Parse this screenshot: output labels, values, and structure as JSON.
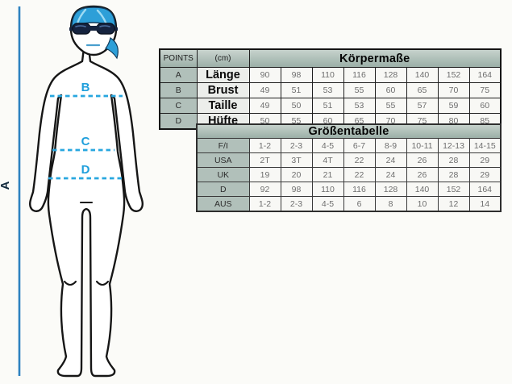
{
  "figure": {
    "height_label": "A",
    "measure_labels": {
      "chest": "B",
      "waist": "C",
      "hip": "D"
    },
    "colors": {
      "measure_line_blue": "#2e82c0",
      "dash_cyan": "#29a7df",
      "cap_blue": "#2d9fd8",
      "outline_black": "#161616",
      "goggles_navy": "#15233f"
    }
  },
  "body_table": {
    "header": {
      "points": "POINTS",
      "unit": "(cm)",
      "title": "Körpermaße"
    },
    "rows": [
      {
        "point": "A",
        "name": "Länge",
        "values": [
          "90",
          "98",
          "110",
          "116",
          "128",
          "140",
          "152",
          "164"
        ]
      },
      {
        "point": "B",
        "name": "Brust",
        "values": [
          "49",
          "51",
          "53",
          "55",
          "60",
          "65",
          "70",
          "75"
        ]
      },
      {
        "point": "C",
        "name": "Taille",
        "values": [
          "49",
          "50",
          "51",
          "53",
          "55",
          "57",
          "59",
          "60"
        ]
      },
      {
        "point": "D",
        "name": "Hüfte",
        "values": [
          "50",
          "55",
          "60",
          "65",
          "70",
          "75",
          "80",
          "85"
        ]
      }
    ]
  },
  "size_table": {
    "title": "Größentabelle",
    "rows": [
      {
        "region": "F/I",
        "values": [
          "1-2",
          "2-3",
          "4-5",
          "6-7",
          "8-9",
          "10-11",
          "12-13",
          "14-15"
        ]
      },
      {
        "region": "USA",
        "values": [
          "2T",
          "3T",
          "4T",
          "22",
          "24",
          "26",
          "28",
          "29"
        ]
      },
      {
        "region": "UK",
        "values": [
          "19",
          "20",
          "21",
          "22",
          "24",
          "26",
          "28",
          "29"
        ]
      },
      {
        "region": "D",
        "values": [
          "92",
          "98",
          "110",
          "116",
          "128",
          "140",
          "152",
          "164"
        ]
      },
      {
        "region": "AUS",
        "values": [
          "1-2",
          "2-3",
          "4-5",
          "6",
          "8",
          "10",
          "12",
          "14"
        ]
      }
    ]
  }
}
